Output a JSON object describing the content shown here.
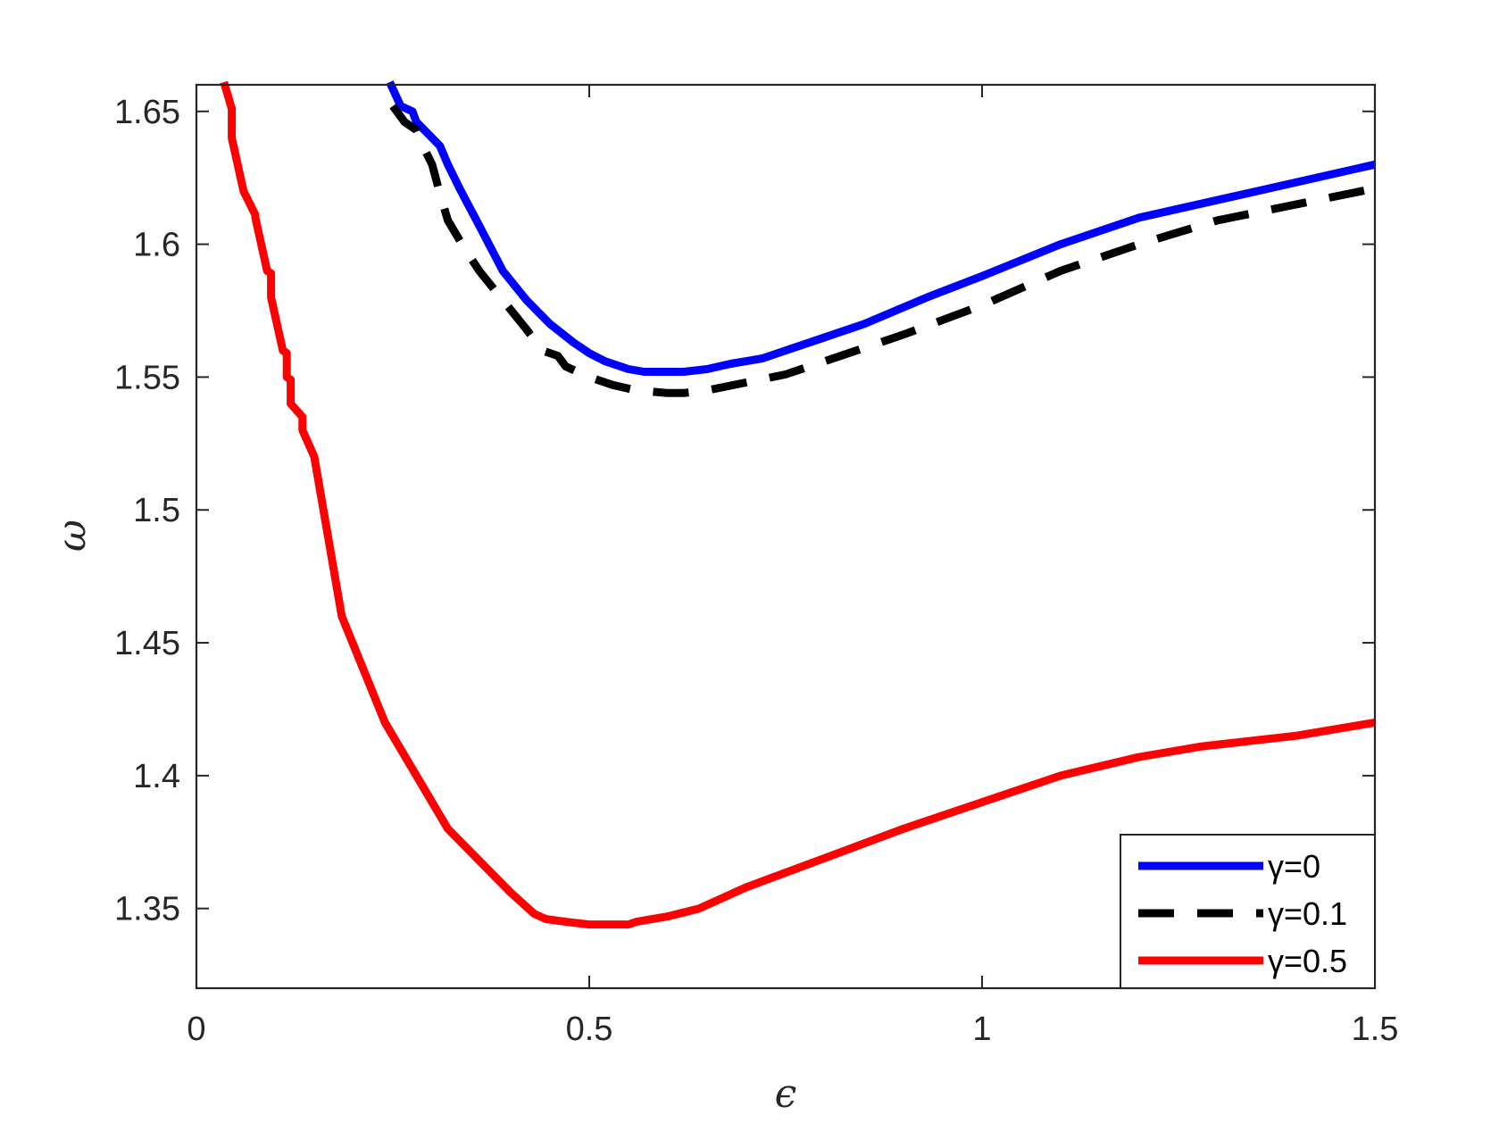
{
  "chart_data": {
    "type": "line",
    "title": "",
    "xlabel": "ϵ",
    "ylabel": "ω",
    "xlim": [
      0,
      1.5
    ],
    "ylim": [
      1.32,
      1.66
    ],
    "xticks": [
      0,
      0.5,
      1,
      1.5
    ],
    "xtick_labels": [
      "0",
      "0.5",
      "1",
      "1.5"
    ],
    "yticks": [
      1.35,
      1.4,
      1.45,
      1.5,
      1.55,
      1.6,
      1.65
    ],
    "ytick_labels": [
      "1.35",
      "1.4",
      "1.45",
      "1.5",
      "1.55",
      "1.6",
      "1.65"
    ],
    "grid": false,
    "legend_position": "bottom-right",
    "series": [
      {
        "name": "γ=0",
        "color": "#0000ff",
        "dash": "solid",
        "x": [
          0.246,
          0.26,
          0.275,
          0.28,
          0.29,
          0.31,
          0.32,
          0.335,
          0.36,
          0.39,
          0.42,
          0.45,
          0.48,
          0.5,
          0.52,
          0.55,
          0.57,
          0.6,
          0.62,
          0.65,
          0.68,
          0.7,
          0.72,
          0.8,
          0.85,
          0.93,
          1.0,
          1.1,
          1.2,
          1.35,
          1.5
        ],
        "y": [
          1.661,
          1.652,
          1.65,
          1.646,
          1.643,
          1.637,
          1.63,
          1.621,
          1.607,
          1.59,
          1.579,
          1.57,
          1.563,
          1.559,
          1.556,
          1.553,
          1.552,
          1.552,
          1.552,
          1.553,
          1.555,
          1.556,
          1.557,
          1.565,
          1.57,
          1.58,
          1.588,
          1.6,
          1.61,
          1.62,
          1.63
        ]
      },
      {
        "name": "γ=0.1",
        "color": "#000000",
        "dash": "dashed",
        "x": [
          0.25,
          0.265,
          0.28,
          0.29,
          0.3,
          0.31,
          0.32,
          0.34,
          0.36,
          0.39,
          0.42,
          0.44,
          0.46,
          0.47,
          0.5,
          0.53,
          0.56,
          0.6,
          0.62,
          0.65,
          0.7,
          0.75,
          0.8,
          0.85,
          0.9,
          1.0,
          1.1,
          1.2,
          1.3,
          1.5
        ],
        "y": [
          1.652,
          1.646,
          1.643,
          1.636,
          1.63,
          1.619,
          1.609,
          1.599,
          1.59,
          1.579,
          1.568,
          1.56,
          1.558,
          1.554,
          1.55,
          1.547,
          1.545,
          1.544,
          1.544,
          1.545,
          1.548,
          1.551,
          1.556,
          1.561,
          1.566,
          1.577,
          1.59,
          1.6,
          1.609,
          1.621
        ]
      },
      {
        "name": "γ=0.5",
        "color": "#ff0000",
        "dash": "solid",
        "x": [
          0.035,
          0.045,
          0.045,
          0.06,
          0.075,
          0.075,
          0.09,
          0.095,
          0.095,
          0.11,
          0.115,
          0.115,
          0.12,
          0.12,
          0.135,
          0.135,
          0.15,
          0.185,
          0.24,
          0.32,
          0.4,
          0.43,
          0.445,
          0.47,
          0.5,
          0.52,
          0.55,
          0.56,
          0.58,
          0.6,
          0.64,
          0.7,
          0.8,
          0.9,
          1.0,
          1.1,
          1.2,
          1.28,
          1.4,
          1.5
        ],
        "y": [
          1.661,
          1.651,
          1.64,
          1.62,
          1.611,
          1.61,
          1.59,
          1.589,
          1.58,
          1.56,
          1.559,
          1.55,
          1.549,
          1.54,
          1.535,
          1.53,
          1.52,
          1.46,
          1.42,
          1.38,
          1.356,
          1.348,
          1.346,
          1.345,
          1.344,
          1.344,
          1.344,
          1.345,
          1.346,
          1.347,
          1.35,
          1.358,
          1.369,
          1.38,
          1.39,
          1.4,
          1.407,
          1.411,
          1.415,
          1.42
        ]
      }
    ]
  }
}
